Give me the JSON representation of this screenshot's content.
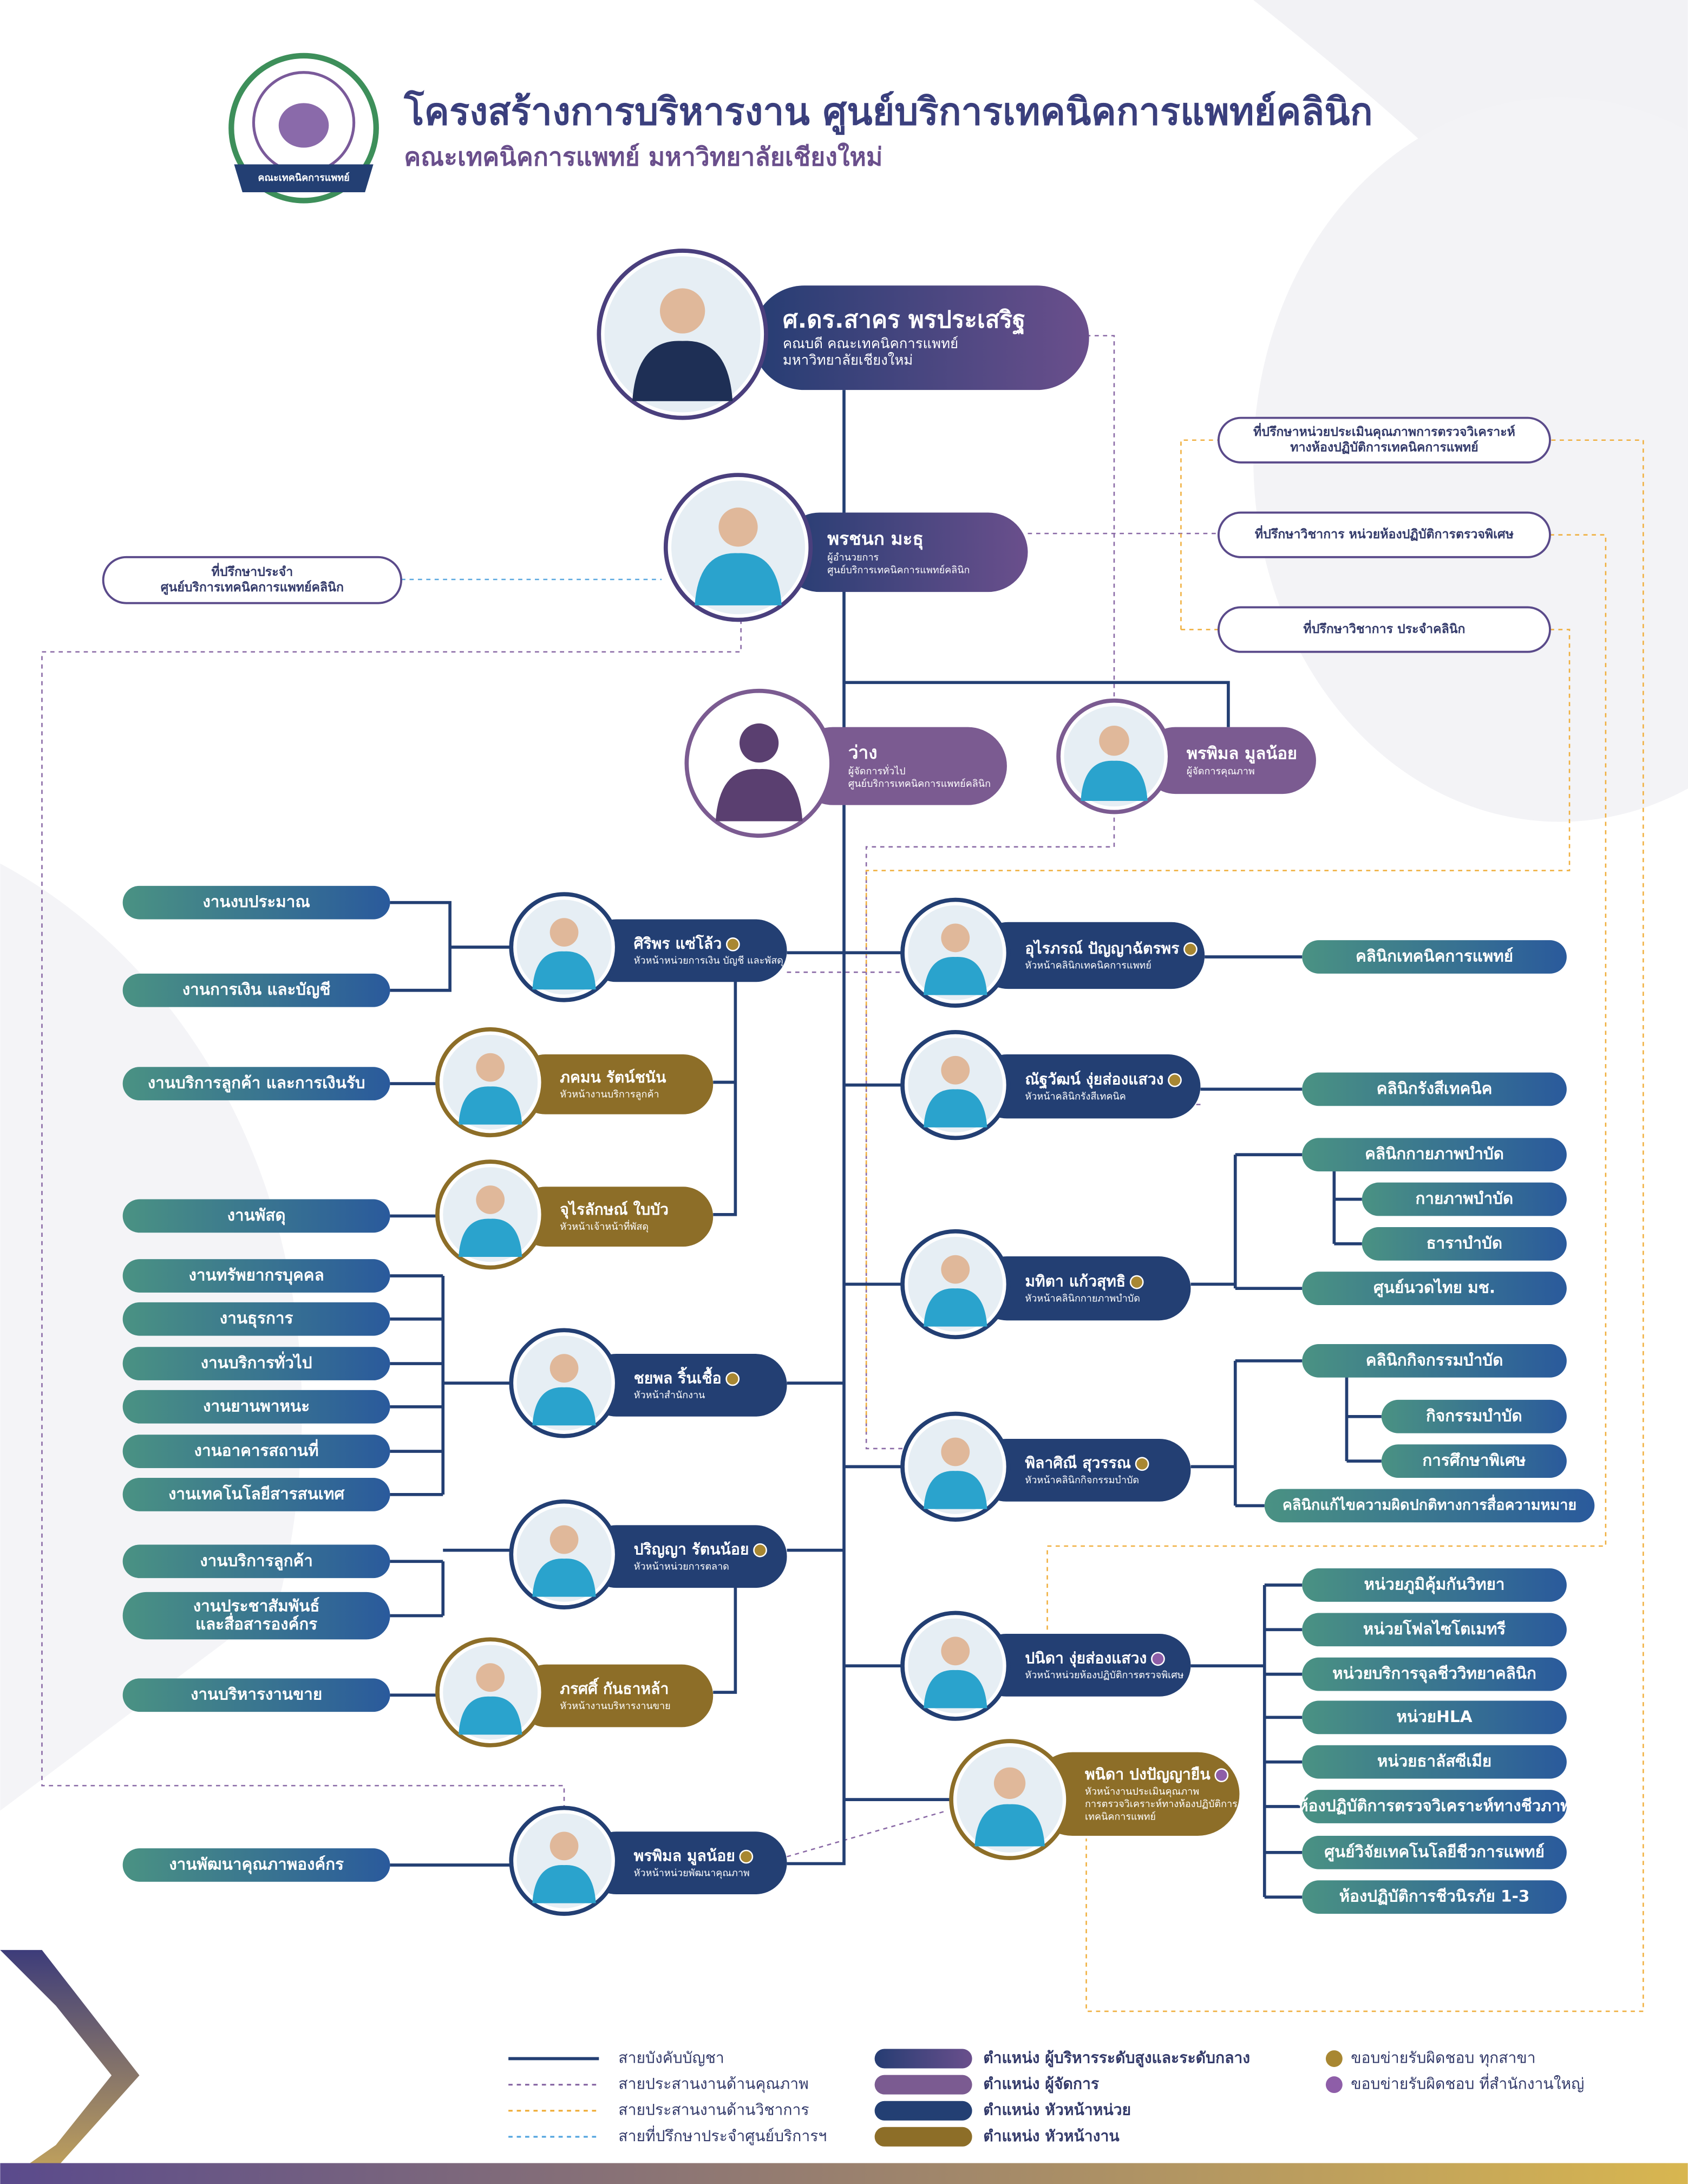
{
  "header": {
    "title": "โครงสร้างการบริหารงาน ศูนย์บริการเทคนิคการแพทย์คลินิก",
    "subtitle": "คณะเทคนิคการแพทย์  มหาวิทยาลัยเชียงใหม่",
    "logo_text": "คณะเทคนิคการแพทย์"
  },
  "people": [
    {
      "name": "ศ.ดร.สาคร พรประเสริฐ",
      "role": [
        "คณบดี คณะเทคนิคการแพทย์",
        "มหาวิทยาลัยเชียงใหม่"
      ]
    },
    {
      "name": "พรชนก มะธุ",
      "role": [
        "ผู้อำนวยการ",
        "ศูนย์บริการเทคนิคการแพทย์คลินิก"
      ]
    },
    {
      "name": "ว่าง",
      "role": [
        "ผู้จัดการทั่วไป",
        "ศูนย์บริการเทคนิคการแพทย์คลินิก"
      ]
    },
    {
      "name": "พรพิมล มูลน้อย",
      "role": [
        "ผู้จัดการคุณภาพ"
      ]
    },
    {
      "name": "ศิริพร แซ่โล้ว",
      "role": [
        "หัวหน้าหน่วยการเงิน บัญชี และพัสดุ"
      ]
    },
    {
      "name": "ภคมน รัตน์ชนัน",
      "role": [
        "หัวหน้างานบริการลูกค้า"
      ]
    },
    {
      "name": "จุไรลักษณ์ ใบบัว",
      "role": [
        "หัวหน้าเจ้าหน้าที่พัสดุ"
      ]
    },
    {
      "name": "ชยพล ริ้นเชื้อ",
      "role": [
        "หัวหน้าสำนักงาน"
      ]
    },
    {
      "name": "ปริญญา รัตนน้อย",
      "role": [
        "หัวหน้าหน่วยการตลาด"
      ]
    },
    {
      "name": "ภรศศิ์ กันธาหล้า",
      "role": [
        "หัวหน้างานบริหารงานขาย"
      ]
    },
    {
      "name": "พรพิมล มูลน้อย",
      "role": [
        "หัวหน้าหน่วยพัฒนาคุณภาพ"
      ]
    },
    {
      "name": "อุไรภรณ์ ปัญญาฉัตรพร",
      "role": [
        "หัวหน้าคลินิกเทคนิคการแพทย์"
      ]
    },
    {
      "name": "ณัฐวัฒน์ งุ่ยส่องแสวง",
      "role": [
        "หัวหน้าคลินิกรังสีเทคนิค"
      ]
    },
    {
      "name": "มทิตา แก้วสุทธิ",
      "role": [
        "หัวหน้าคลินิกกายภาพบำบัด"
      ]
    },
    {
      "name": "พิลาศิณี สุวรรณ",
      "role": [
        "หัวหน้าคลินิกกิจกรรมบำบัด"
      ]
    },
    {
      "name": "ปนิดา งุ่ยส่องแสวง",
      "role": [
        "หัวหน้าหน่วยห้องปฏิบัติการตรวจพิเศษ"
      ]
    },
    {
      "name": "พนิดา ปงปัญญายืน",
      "role": [
        "หัวหน้างานประเมินคุณภาพ",
        "การตรวจวิเคราะห์ทางห้องปฏิบัติการ",
        "เทคนิคการแพทย์"
      ]
    }
  ],
  "advisors": [
    [
      "ที่ปรึกษาประจำ",
      "ศูนย์บริการเทคนิคการแพทย์คลินิก"
    ],
    [
      "ที่ปรึกษาหน่วยประเมินคุณภาพการตรวจวิเคราะห์",
      "ทางห้องปฏิบัติการเทคนิคการแพทย์"
    ],
    [
      "ที่ปรึกษาวิชาการ หน่วยห้องปฏิบัติการตรวจพิเศษ"
    ],
    [
      "ที่ปรึกษาวิชาการ ประจำคลินิก"
    ]
  ],
  "units": [
    [
      "งานงบประมาณ"
    ],
    [
      "งานการเงิน และบัญชี"
    ],
    [
      "งานบริการลูกค้า และการเงินรับ"
    ],
    [
      "งานพัสดุ"
    ],
    [
      "งานทรัพยากรบุคคล"
    ],
    [
      "งานธุรการ"
    ],
    [
      "งานบริการทั่วไป"
    ],
    [
      "งานยานพาหนะ"
    ],
    [
      "งานอาคารสถานที่"
    ],
    [
      "งานเทคโนโลยีสารสนเทศ"
    ],
    [
      "งานบริการลูกค้า"
    ],
    [
      "งานประชาสัมพันธ์",
      "และสื่อสารองค์กร"
    ],
    [
      "งานบริหารงานขาย"
    ],
    [
      "งานพัฒนาคุณภาพองค์กร"
    ],
    [
      "คลินิกเทคนิคการแพทย์"
    ],
    [
      "คลินิกรังสีเทคนิค"
    ],
    [
      "คลินิกกายภาพบำบัด"
    ],
    [
      "กายภาพบำบัด"
    ],
    [
      "ธาราบำบัด"
    ],
    [
      "ศูนย์นวดไทย มช."
    ],
    [
      "คลินิกกิจกรรมบำบัด"
    ],
    [
      "กิจกรรมบำบัด"
    ],
    [
      "การศึกษาพิเศษ"
    ],
    [
      "คลินิกแก้ไขความผิดปกติทางการสื่อความหมาย"
    ],
    [
      "หน่วยภูมิคุ้มกันวิทยา"
    ],
    [
      "หน่วยโฟลไซโตเมทรี"
    ],
    [
      "หน่วยบริการจุลชีววิทยาคลินิก"
    ],
    [
      "หน่วยHLA"
    ],
    [
      "หน่วยธาลัสซีเมีย"
    ],
    [
      "ห้องปฏิบัติการตรวจวิเคราะห์ทางชีวภาพ"
    ],
    [
      "ศูนย์วิจัยเทคโนโลยีชีวการแพทย์"
    ],
    [
      "ห้องปฏิบัติการชีวนิรภัย 1-3"
    ]
  ],
  "legend": {
    "lines": [
      "สายบังคับบัญชา",
      "สายประสานงานด้านคุณภาพ",
      "สายประสานงานด้านวิชาการ",
      "สายที่ปรึกษาประจำศูนย์บริการฯ"
    ],
    "positions": [
      "ตำแหน่ง ผู้บริหารระดับสูงและระดับกลาง",
      "ตำแหน่ง ผู้จัดการ",
      "ตำแหน่ง หัวหน้าหน่วย",
      "ตำแหน่ง หัวหน้างาน"
    ],
    "scopes": [
      "ขอบข่ายรับผิดชอบ ทุกสาขา",
      "ขอบข่ายรับผิดชอบ ที่สำนักงานใหญ่"
    ]
  }
}
